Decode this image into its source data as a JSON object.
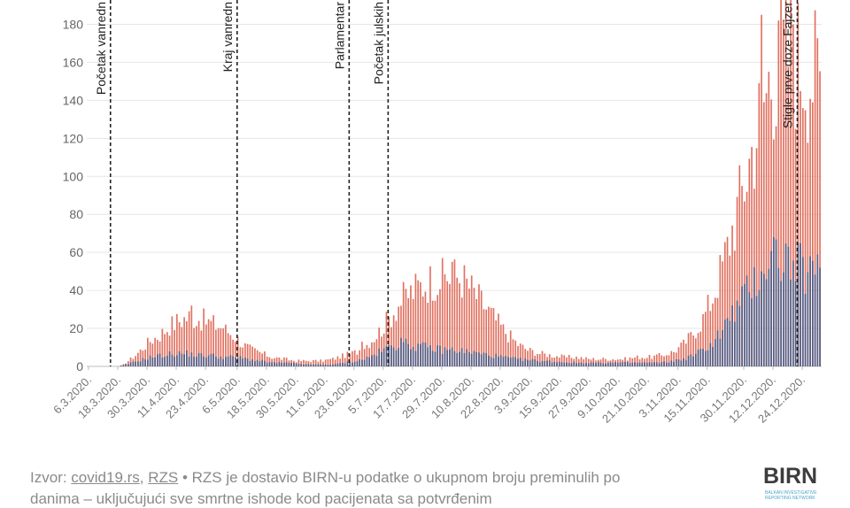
{
  "chart_data": {
    "type": "bar",
    "title": "",
    "xlabel": "",
    "ylabel": "",
    "ylim": [
      0,
      190
    ],
    "y_ticks": [
      "0",
      "20",
      "40",
      "60",
      "80",
      "100",
      "120",
      "140",
      "160",
      "180"
    ],
    "x_tick_labels": [
      "6.3.2020.",
      "18.3.2020.",
      "30.3.2020.",
      "11.4.2020.",
      "23.4.2020.",
      "6.5.2020.",
      "18.5.2020.",
      "30.5.2020.",
      "11.6.2020.",
      "23.6.2020.",
      "5.7.2020.",
      "17.7.2020.",
      "29.7.2020.",
      "10.8.2020.",
      "22.8.2020.",
      "3.9.2020.",
      "15.9.2020.",
      "27.9.2020.",
      "9.10.2020.",
      "21.10.2020.",
      "3.11.2020.",
      "15.11.2020.",
      "30.11.2020.",
      "12.12.2020.",
      "24.12.2020."
    ],
    "x_range": [
      "6.3.2020.",
      "31.12.2020."
    ],
    "series": [
      {
        "name": "RZS",
        "color": "#e0705f",
        "keyframes": [
          [
            0,
            0
          ],
          [
            12,
            0
          ],
          [
            14,
            1
          ],
          [
            16,
            3
          ],
          [
            19,
            6
          ],
          [
            22,
            10
          ],
          [
            25,
            14
          ],
          [
            29,
            17
          ],
          [
            33,
            22
          ],
          [
            37,
            25
          ],
          [
            41,
            27
          ],
          [
            45,
            26
          ],
          [
            49,
            24
          ],
          [
            53,
            22
          ],
          [
            57,
            19
          ],
          [
            60,
            16
          ],
          [
            63,
            12
          ],
          [
            67,
            9
          ],
          [
            71,
            7
          ],
          [
            75,
            5
          ],
          [
            80,
            4
          ],
          [
            85,
            3
          ],
          [
            90,
            3
          ],
          [
            95,
            3
          ],
          [
            100,
            4
          ],
          [
            105,
            6
          ],
          [
            110,
            8
          ],
          [
            114,
            12
          ],
          [
            118,
            17
          ],
          [
            122,
            24
          ],
          [
            126,
            32
          ],
          [
            129,
            37
          ],
          [
            132,
            40
          ],
          [
            135,
            43
          ],
          [
            138,
            45
          ],
          [
            141,
            47
          ],
          [
            144,
            48
          ],
          [
            147,
            49
          ],
          [
            150,
            49
          ],
          [
            153,
            48
          ],
          [
            155,
            45
          ],
          [
            158,
            40
          ],
          [
            161,
            35
          ],
          [
            164,
            30
          ],
          [
            167,
            25
          ],
          [
            170,
            20
          ],
          [
            173,
            16
          ],
          [
            176,
            12
          ],
          [
            180,
            9
          ],
          [
            185,
            7
          ],
          [
            190,
            6
          ],
          [
            195,
            5
          ],
          [
            200,
            5
          ],
          [
            205,
            4
          ],
          [
            210,
            4
          ],
          [
            215,
            4
          ],
          [
            220,
            4
          ],
          [
            225,
            5
          ],
          [
            230,
            5
          ],
          [
            235,
            6
          ],
          [
            240,
            8
          ],
          [
            244,
            12
          ],
          [
            248,
            18
          ],
          [
            252,
            26
          ],
          [
            256,
            38
          ],
          [
            260,
            55
          ],
          [
            264,
            75
          ],
          [
            268,
            95
          ],
          [
            272,
            118
          ],
          [
            276,
            140
          ],
          [
            279,
            155
          ],
          [
            282,
            165
          ],
          [
            285,
            170
          ],
          [
            288,
            172
          ],
          [
            291,
            168
          ],
          [
            294,
            165
          ],
          [
            297,
            160
          ],
          [
            300,
            155
          ],
          [
            303,
            150
          ],
          [
            306,
            145
          ],
          [
            309,
            140
          ],
          [
            312,
            125
          ]
        ],
        "spikes": [
          [
            42,
            32
          ],
          [
            55,
            20
          ],
          [
            112,
            13
          ],
          [
            145,
            57
          ],
          [
            149,
            55
          ],
          [
            276,
            185
          ],
          [
            283,
            182
          ],
          [
            289,
            180
          ],
          [
            301,
            175
          ],
          [
            305,
            185
          ]
        ]
      },
      {
        "name": "covid19.rs",
        "color": "#4f5d86",
        "keyframes": [
          [
            0,
            0
          ],
          [
            12,
            0
          ],
          [
            15,
            1
          ],
          [
            20,
            3
          ],
          [
            25,
            5
          ],
          [
            30,
            6
          ],
          [
            35,
            7
          ],
          [
            40,
            7
          ],
          [
            45,
            6
          ],
          [
            50,
            6
          ],
          [
            55,
            5
          ],
          [
            60,
            5
          ],
          [
            65,
            4
          ],
          [
            70,
            3
          ],
          [
            75,
            2
          ],
          [
            80,
            2
          ],
          [
            90,
            1
          ],
          [
            100,
            1
          ],
          [
            105,
            2
          ],
          [
            110,
            3
          ],
          [
            115,
            5
          ],
          [
            118,
            7
          ],
          [
            121,
            9
          ],
          [
            124,
            11
          ],
          [
            127,
            12
          ],
          [
            130,
            12
          ],
          [
            135,
            11
          ],
          [
            140,
            10
          ],
          [
            145,
            9
          ],
          [
            150,
            9
          ],
          [
            155,
            8
          ],
          [
            160,
            7
          ],
          [
            165,
            6
          ],
          [
            170,
            5
          ],
          [
            175,
            4
          ],
          [
            185,
            3
          ],
          [
            200,
            2
          ],
          [
            220,
            2
          ],
          [
            235,
            2
          ],
          [
            240,
            3
          ],
          [
            244,
            4
          ],
          [
            248,
            6
          ],
          [
            252,
            9
          ],
          [
            256,
            13
          ],
          [
            260,
            20
          ],
          [
            264,
            28
          ],
          [
            268,
            36
          ],
          [
            272,
            44
          ],
          [
            276,
            52
          ],
          [
            279,
            58
          ],
          [
            282,
            60
          ],
          [
            285,
            58
          ],
          [
            288,
            56
          ],
          [
            291,
            54
          ],
          [
            294,
            52
          ],
          [
            297,
            50
          ],
          [
            300,
            50
          ],
          [
            303,
            50
          ],
          [
            306,
            50
          ],
          [
            309,
            48
          ],
          [
            312,
            46
          ]
        ],
        "spikes": [
          [
            128,
            15
          ],
          [
            281,
            68
          ],
          [
            303,
            55
          ]
        ]
      }
    ],
    "annotations": [
      {
        "label": "Početak vanredn",
        "date": "15.3.2020."
      },
      {
        "label": "Kraj vanredn",
        "date": "6.5.2020."
      },
      {
        "label": "Parlamentar",
        "date": "21.6.2020."
      },
      {
        "label": "Početak julskih",
        "date": "7.7.2020."
      },
      {
        "label": "Stigle prve doze Fajzer",
        "date": "22.12.2020."
      }
    ]
  },
  "footer": {
    "prefix": "Izvor: ",
    "source1": "covid19.rs",
    "separator": ", ",
    "source2": "RZS",
    "text": " • RZS je dostavio BIRN-u podatke o ukupnom broju preminulih po",
    "line2": "danima – uključujući sve smrtne ishode kod pacijenata sa potvrđenim"
  },
  "logo": {
    "text": "BIRN",
    "sub": "BALKAN INVESTIGATIVE REPORTING NETWORK"
  }
}
